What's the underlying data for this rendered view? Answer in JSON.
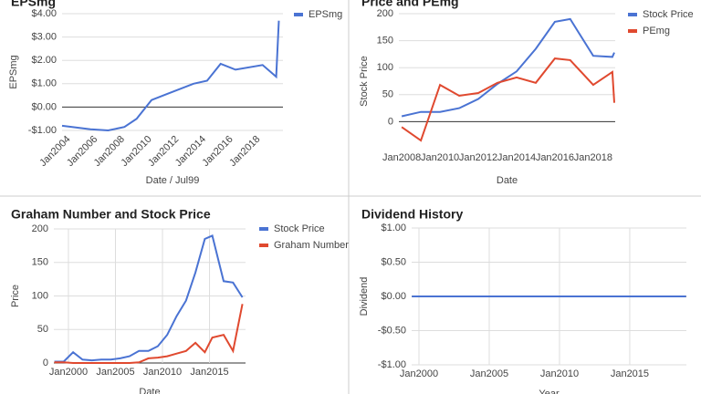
{
  "chart_data": [
    {
      "type": "line",
      "title": "EPSmg",
      "y_label": "EPSmg",
      "x_label": "Date / Jul99",
      "legend": "right",
      "grid": true,
      "rotate_xticks": true,
      "xlim": [
        2003.5,
        2019.8
      ],
      "ylim": [
        -1,
        4
      ],
      "yticks": [
        {
          "value": 4,
          "label": "$4.00"
        },
        {
          "value": 3,
          "label": "$3.00"
        },
        {
          "value": 2,
          "label": "$2.00"
        },
        {
          "value": 1,
          "label": "$1.00"
        },
        {
          "value": 0,
          "label": "$0.00"
        },
        {
          "value": -1,
          "label": "-$1.00"
        }
      ],
      "xticks": [
        {
          "value": 2004,
          "label": "Jan2004"
        },
        {
          "value": 2006,
          "label": "Jan2006"
        },
        {
          "value": 2008,
          "label": "Jan2008"
        },
        {
          "value": 2010,
          "label": "Jan2010"
        },
        {
          "value": 2012,
          "label": "Jan2012"
        },
        {
          "value": 2014,
          "label": "Jan2014"
        },
        {
          "value": 2016,
          "label": "Jan2016"
        },
        {
          "value": 2018,
          "label": "Jan2018"
        }
      ],
      "x": [
        2003.5,
        2005.6,
        2006.9,
        2008.1,
        2009.0,
        2010.1,
        2011.2,
        2013.2,
        2014.2,
        2015.2,
        2016.3,
        2018.3,
        2019.3,
        2019.5
      ],
      "series": [
        {
          "name": "EPSmg",
          "color": "#4a73d3",
          "values": [
            -0.8,
            -0.95,
            -1.0,
            -0.85,
            -0.5,
            0.3,
            0.55,
            1.0,
            1.13,
            1.85,
            1.6,
            1.8,
            1.3,
            3.7
          ]
        }
      ]
    },
    {
      "type": "line",
      "title": "Price and PEmg",
      "y_label": "Stock Price",
      "x_label": "Date",
      "legend": "right",
      "grid": true,
      "rotate_xticks": false,
      "xlim": [
        2007.85,
        2019.15
      ],
      "ylim": [
        -50,
        200
      ],
      "yticks": [
        0,
        50,
        100,
        150,
        200
      ],
      "xticks": [
        {
          "value": 2008,
          "label": "Jan2008"
        },
        {
          "value": 2010,
          "label": "Jan2010"
        },
        {
          "value": 2012,
          "label": "Jan2012"
        },
        {
          "value": 2014,
          "label": "Jan2014"
        },
        {
          "value": 2016,
          "label": "Jan2016"
        },
        {
          "value": 2018,
          "label": "Jan2018"
        }
      ],
      "x": [
        2008,
        2009,
        2010,
        2011,
        2012,
        2013,
        2014,
        2015,
        2016,
        2016.8,
        2018,
        2019,
        2019.1
      ],
      "series": [
        {
          "name": "Stock Price",
          "color": "#4a73d3",
          "values": [
            10,
            18,
            18,
            25,
            42,
            70,
            93,
            135,
            185,
            190,
            122,
            120,
            128
          ]
        },
        {
          "name": "PEmg",
          "color": "#e0492f",
          "values": [
            -10,
            -35,
            68,
            48,
            53,
            72,
            82,
            72,
            117,
            114,
            68,
            92,
            35
          ]
        }
      ]
    },
    {
      "type": "line",
      "title": "Graham Number and Stock Price",
      "y_label": "Price",
      "x_label": "Date",
      "legend": "right",
      "grid": true,
      "xgrid": true,
      "rotate_xticks": false,
      "xlim": [
        1998.45,
        2018.83
      ],
      "ylim": [
        0,
        200
      ],
      "yticks": [
        0,
        50,
        100,
        150,
        200
      ],
      "xticks": [
        {
          "value": 2000,
          "label": "Jan2000"
        },
        {
          "value": 2005,
          "label": "Jan2005"
        },
        {
          "value": 2010,
          "label": "Jan2010"
        },
        {
          "value": 2015,
          "label": "Jan2015"
        }
      ],
      "x": [
        1998.5,
        1999.5,
        2000.5,
        2001.5,
        2002.5,
        2003.5,
        2004.5,
        2005.5,
        2006.5,
        2007.5,
        2008.5,
        2009.5,
        2010.5,
        2011.5,
        2012.5,
        2013.5,
        2014.5,
        2015.3,
        2016.5,
        2017.5,
        2018.5
      ],
      "series": [
        {
          "name": "Stock Price",
          "color": "#4a73d3",
          "values": [
            2,
            2,
            16,
            5,
            4,
            5,
            5,
            7,
            10,
            18,
            18,
            25,
            42,
            70,
            93,
            135,
            185,
            190,
            122,
            120,
            98
          ]
        },
        {
          "name": "Graham Number",
          "color": "#e0492f",
          "values": [
            1,
            1,
            0,
            0,
            0,
            0,
            0,
            0,
            0,
            1,
            7,
            8,
            10,
            14,
            18,
            30,
            16,
            38,
            42,
            18,
            88
          ]
        }
      ]
    },
    {
      "type": "line",
      "title": "Dividend History",
      "y_label": "Dividend",
      "x_label": "Year",
      "grid": true,
      "xgrid": true,
      "rotate_xticks": false,
      "xlim": [
        1999.48,
        2019.03
      ],
      "ylim": [
        -1,
        1
      ],
      "yticks": [
        {
          "value": 1,
          "label": "$1.00"
        },
        {
          "value": 0.5,
          "label": "$0.50"
        },
        {
          "value": 0,
          "label": "$0.00"
        },
        {
          "value": -0.5,
          "label": "-$0.50"
        },
        {
          "value": -1,
          "label": "-$1.00"
        }
      ],
      "xticks": [
        {
          "value": 2000,
          "label": "Jan2000"
        },
        {
          "value": 2005,
          "label": "Jan2005"
        },
        {
          "value": 2010,
          "label": "Jan2010"
        },
        {
          "value": 2015,
          "label": "Jan2015"
        }
      ],
      "x": [
        1999.5,
        2019
      ],
      "series": [
        {
          "color": "#4a73d3",
          "values": [
            0,
            0
          ]
        }
      ]
    }
  ]
}
